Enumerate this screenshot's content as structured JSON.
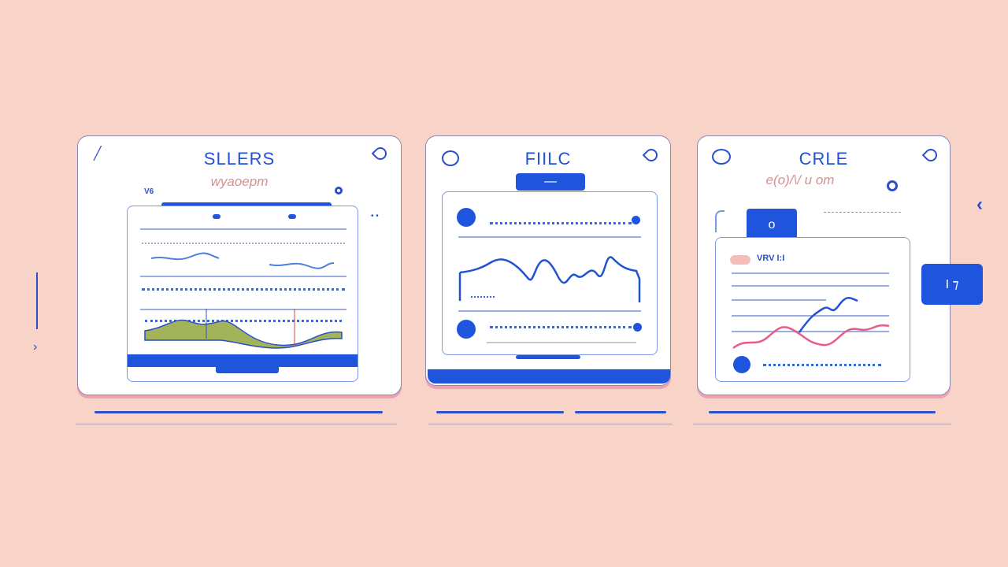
{
  "cards": [
    {
      "title": "SLLERS",
      "subtitle": "wyaoepm",
      "tag": "V6"
    },
    {
      "title": "FIILC",
      "button": "—"
    },
    {
      "title": "CRLE",
      "subtitle": "e(o)/\\/ u om",
      "tab_button": "o",
      "legend_text": "VRV I:I",
      "side_button": "I ⁊"
    }
  ],
  "colors": {
    "accent": "#1f55dc",
    "background": "#f7d3c8",
    "pink_series": "#e85b8a",
    "green_area": "#a2b35a"
  }
}
